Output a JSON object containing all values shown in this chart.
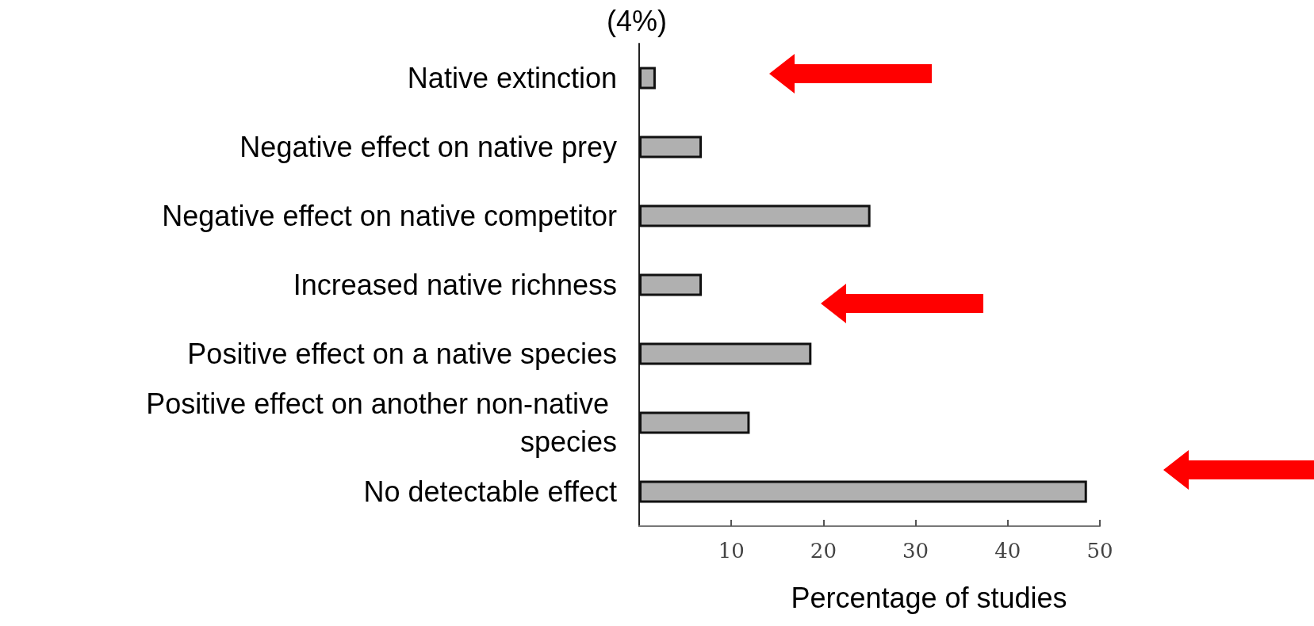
{
  "chart_data": {
    "type": "bar",
    "orientation": "horizontal",
    "categories": [
      "Native extinction",
      "Negative effect on native prey",
      "Negative effect on native competitor",
      "Increased native richness",
      "Positive effect on a native species",
      "Positive effect on another non-native species",
      "No detectable effect"
    ],
    "values": [
      1.8,
      6.8,
      25.1,
      6.8,
      18.7,
      12,
      48.6
    ],
    "color": "#b0b0b0",
    "xlim": [
      0,
      50
    ],
    "xticks": [
      10,
      20,
      30,
      40,
      50
    ],
    "xlabel": "Percentage of studies",
    "annotations": [
      "(4%)"
    ]
  }
}
